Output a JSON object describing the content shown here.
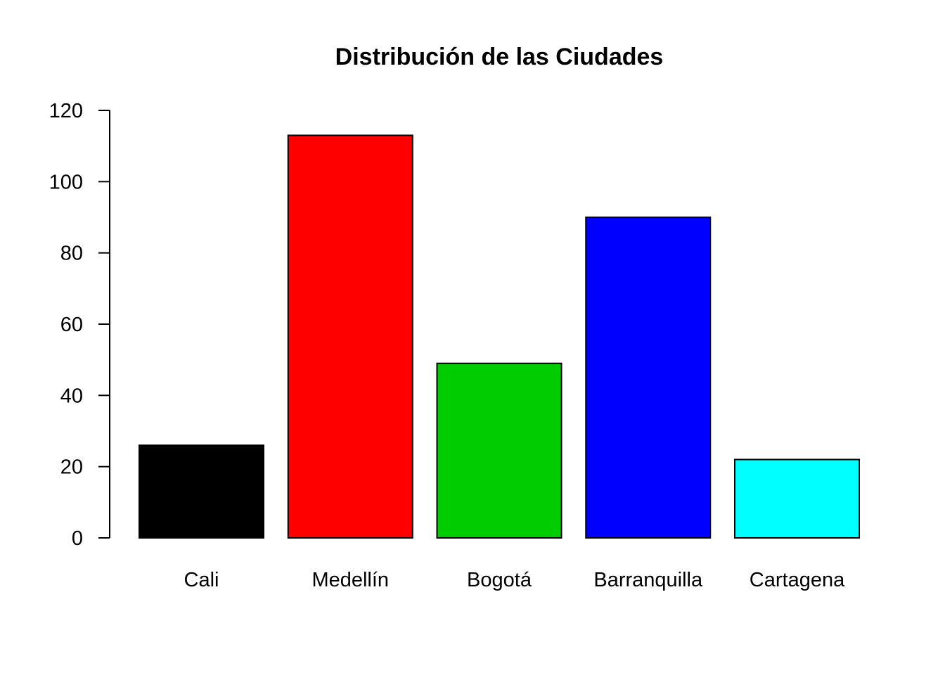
{
  "chart_data": {
    "type": "bar",
    "title": "Distribución de las Ciudades",
    "xlabel": "",
    "ylabel": "",
    "categories": [
      "Cali",
      "Medellín",
      "Bogotá",
      "Barranquilla",
      "Cartagena"
    ],
    "values": [
      26,
      113,
      49,
      90,
      22
    ],
    "colors": [
      "#000000",
      "#ff0000",
      "#00cd00",
      "#0000ff",
      "#00ffff"
    ],
    "ylim": [
      0,
      120
    ],
    "yticks": [
      "0",
      "20",
      "40",
      "60",
      "80",
      "100",
      "120"
    ],
    "grid": false,
    "legend": "none"
  }
}
